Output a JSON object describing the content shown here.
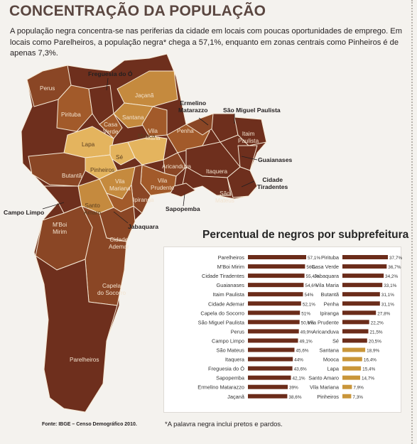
{
  "header": {
    "title": "CONCENTRAÇÃO DA POPULAÇÃO",
    "intro": "A população negra concentra-se nas periferias da cidade em locais com poucas oportunidades de emprego. Em locais como Parelheiros, a população negra* chega a 57,1%, enquanto em zonas centrais como Pinheiros é de apenas 7,3%."
  },
  "map": {
    "colors": {
      "darkest": "#6e2f1d",
      "dark": "#8a4625",
      "mid": "#a25a2a",
      "light": "#c58a3e",
      "lightest": "#e4b45e",
      "line": "#f6ead7"
    },
    "labels": {
      "perus": "Perus",
      "pirituba": "Pirituba",
      "jacana": "Jaçanã",
      "santana": "Santana",
      "casa_verde": "Casa\nVerde",
      "vila_maria": "Vila\nMaria",
      "lapa": "Lapa",
      "se": "Sé",
      "mooca": "Mooca",
      "penha": "Penha",
      "itaim_paulista": "Itaim\nPaulista",
      "pinheiros": "Pinheiros",
      "butanta": "Butantã",
      "aricanduva": "Aricanduva",
      "itaquera": "Itaquera",
      "vila_mariana": "Vila\nMariana",
      "vila_prudente": "Vila\nPrudente",
      "sao_mateus": "São\nMateus",
      "ipiranga": "Ipiranga",
      "santo_amaro": "Santo\nAmaro",
      "m_boi_mirim": "M'Boi\nMirim",
      "cidade_ademar": "Cidade\nAdemar",
      "capela_do_socorro": "Capela\ndo Socorro",
      "parelheiros": "Parelheiros"
    },
    "callouts": {
      "freguesia": "Freguesia do Ó",
      "ermelino": "Ermelino\nMatarazzo",
      "sao_miguel": "São Miguel Paulista",
      "guaianases": "Guaianases",
      "cidade_tiradentes": "Cidade\nTiradentes",
      "sapopemba": "Sapopemba",
      "campo_limpo": "Campo Limpo",
      "jabaquara": "Jabaquara"
    }
  },
  "chart_data": {
    "type": "bar",
    "title": "Percentual de negros por subprefeitura",
    "colors": {
      "bar_dark": "#6b2c1a",
      "bar_light": "#c9963a",
      "axis": "#333333"
    },
    "ylim": [
      0,
      60
    ],
    "series": [
      {
        "categories": [
          "Parelheiros",
          "M'Boi Mirim",
          "Cidade Tiradentes",
          "Guaianases",
          "Itaim Paulista",
          "Cidade Ademar",
          "Capela do Socorro",
          "São Miguel Paulista",
          "Perus",
          "Campo Limpo",
          "São Mateus",
          "Itaquera",
          "Freguesia do Ó",
          "Sapopemba",
          "Ermelino Matarazzo",
          "Jaçanã"
        ],
        "values": [
          57.1,
          56.0,
          55.4,
          54.6,
          54.0,
          52.1,
          51.0,
          50.6,
          49.9,
          49.1,
          45.6,
          44.0,
          43.6,
          42.1,
          39.0,
          38.6
        ],
        "labels": [
          "57,1%",
          "56%",
          "55,4%",
          "54,6%",
          "54%",
          "52,1%",
          "51%",
          "50,6%",
          "49,9%",
          "49,1%",
          "45,6%",
          "44%",
          "43,6%",
          "42,1%",
          "39%",
          "38,6%"
        ]
      },
      {
        "categories": [
          "Pirituba",
          "Casa Verde",
          "Jabaquara",
          "Vila Maria",
          "Butantã",
          "Penha",
          "Ipiranga",
          "Vila Prudente",
          "Aricanduva",
          "Sé",
          "Santana",
          "Mooca",
          "Lapa",
          "Santo Amaro",
          "Vila Mariana",
          "Pinheiros"
        ],
        "values": [
          37.7,
          36.7,
          34.2,
          33.1,
          31.1,
          31.1,
          27.8,
          22.2,
          21.5,
          20.5,
          18.9,
          16.4,
          15.4,
          14.7,
          7.9,
          7.3
        ],
        "labels": [
          "37,7%",
          "36,7%",
          "34,2%",
          "33,1%",
          "31,1%",
          "31,1%",
          "27,8%",
          "22,2%",
          "21,5%",
          "20,5%",
          "18,9%",
          "16,4%",
          "15,4%",
          "14,7%",
          "7,9%",
          "7,3%"
        ]
      }
    ]
  },
  "footer": {
    "source": "Fonte: IBGE – Censo Demográfico 2010.",
    "footnote": "*A palavra negra inclui pretos e pardos."
  }
}
